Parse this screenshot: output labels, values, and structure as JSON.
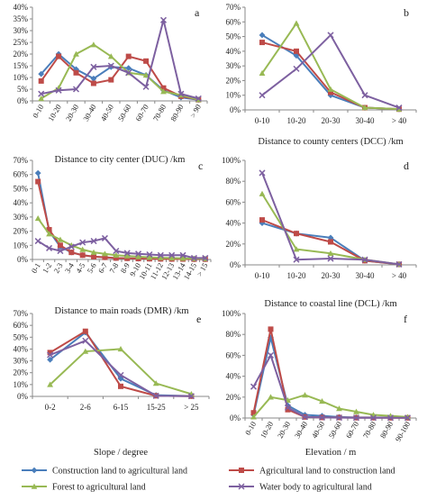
{
  "colors": {
    "construction_to_agri": "#4a7ebb",
    "agri_to_construction": "#be4b48",
    "forest_to_agri": "#98b954",
    "water_to_agri": "#7d60a0"
  },
  "legend": [
    {
      "key": "construction_to_agri",
      "label": "Construction land to agricultural land",
      "marker": "diamond"
    },
    {
      "key": "agri_to_construction",
      "label": "Agricultural land to construction land",
      "marker": "square"
    },
    {
      "key": "forest_to_agri",
      "label": "Forest to agricultural land",
      "marker": "triangle"
    },
    {
      "key": "water_to_agri",
      "label": "Water body to agricultural land",
      "marker": "x"
    }
  ],
  "chart_data": [
    {
      "type": "line",
      "panel": "a",
      "xlabel": "Distance to city center (DUC) /km",
      "categories": [
        "0-10",
        "10-20",
        "20-30",
        "30-40",
        "40-50",
        "50-60",
        "60-70",
        "70-80",
        "80-90",
        "> 90"
      ],
      "ylim": [
        0,
        40
      ],
      "yticks": [
        "0%",
        "5%",
        "10%",
        "15%",
        "20%",
        "25%",
        "30%",
        "35%",
        "40%"
      ],
      "ytick_values": [
        0,
        5,
        10,
        15,
        20,
        25,
        30,
        35,
        40
      ],
      "series": [
        {
          "key": "construction_to_agri",
          "values": [
            11.5,
            20,
            13.5,
            9.5,
            14.5,
            14,
            11,
            4.5,
            1.5,
            0.5
          ]
        },
        {
          "key": "agri_to_construction",
          "values": [
            8.5,
            19,
            12,
            7.5,
            9,
            19,
            17,
            5.5,
            2,
            0.5
          ]
        },
        {
          "key": "forest_to_agri",
          "values": [
            1,
            5.5,
            20,
            24,
            19,
            12,
            11,
            4,
            2.5,
            0.5
          ]
        },
        {
          "key": "water_to_agri",
          "values": [
            3,
            4.5,
            5,
            14.5,
            15,
            12,
            6,
            34.5,
            3,
            1
          ]
        }
      ]
    },
    {
      "type": "line",
      "panel": "b",
      "xlabel": "Distance to county centers (DCC) /km",
      "categories": [
        "0-10",
        "10-20",
        "20-30",
        "30-40",
        "> 40"
      ],
      "ylim": [
        0,
        70
      ],
      "yticks": [
        "0%",
        "10%",
        "20%",
        "30%",
        "40%",
        "50%",
        "60%",
        "70%"
      ],
      "ytick_values": [
        0,
        10,
        20,
        30,
        40,
        50,
        60,
        70
      ],
      "series": [
        {
          "key": "construction_to_agri",
          "values": [
            51,
            37,
            10,
            1.5,
            0.5
          ]
        },
        {
          "key": "agri_to_construction",
          "values": [
            46,
            40,
            12,
            1.5,
            0.5
          ]
        },
        {
          "key": "forest_to_agri",
          "values": [
            25,
            59,
            14,
            1.5,
            0.5
          ]
        },
        {
          "key": "water_to_agri",
          "values": [
            10,
            28,
            51,
            10,
            1.5
          ]
        }
      ]
    },
    {
      "type": "line",
      "panel": "c",
      "xlabel": "Distance to main roads (DMR) /km",
      "categories": [
        "0-1",
        "1-2",
        "2-3",
        "3-4",
        "4-5",
        "5-6",
        "6-7",
        "7-8",
        "8-9",
        "9-10",
        "10-11",
        "11-12",
        "12-13",
        "13-14",
        "14-15",
        "> 15"
      ],
      "ylim": [
        0,
        70
      ],
      "yticks": [
        "0%",
        "10%",
        "20%",
        "30%",
        "40%",
        "50%",
        "60%",
        "70%"
      ],
      "ytick_values": [
        0,
        10,
        20,
        30,
        40,
        50,
        60,
        70
      ],
      "series": [
        {
          "key": "construction_to_agri",
          "values": [
            61,
            20,
            9,
            5,
            3,
            2,
            1.5,
            1,
            0.8,
            0.6,
            0.5,
            0.4,
            0.3,
            0.3,
            0.2,
            0.2
          ]
        },
        {
          "key": "agri_to_construction",
          "values": [
            55,
            21,
            10,
            5,
            3,
            2,
            1.5,
            1,
            0.8,
            0.6,
            0.5,
            0.4,
            0.3,
            0.3,
            0.2,
            0.2
          ]
        },
        {
          "key": "forest_to_agri",
          "values": [
            29,
            18,
            14,
            10,
            7,
            5,
            4,
            3,
            2.5,
            2,
            1.5,
            1.2,
            1,
            0.8,
            0.6,
            0.5
          ]
        },
        {
          "key": "water_to_agri",
          "values": [
            13,
            8,
            6,
            9,
            12,
            13,
            15,
            6,
            4.5,
            4,
            3.5,
            3,
            3,
            3,
            1,
            1
          ]
        }
      ]
    },
    {
      "type": "line",
      "panel": "d",
      "xlabel": "Distance to coastal line (DCL) /km",
      "categories": [
        "0-10",
        "10-20",
        "20-30",
        "30-40",
        "> 40"
      ],
      "ylim": [
        0,
        100
      ],
      "yticks": [
        "0%",
        "20%",
        "40%",
        "60%",
        "80%",
        "100%"
      ],
      "ytick_values": [
        0,
        20,
        40,
        60,
        80,
        100
      ],
      "series": [
        {
          "key": "construction_to_agri",
          "values": [
            40,
            30,
            26,
            4,
            0.5
          ]
        },
        {
          "key": "agri_to_construction",
          "values": [
            43,
            30,
            22,
            4,
            0.5
          ]
        },
        {
          "key": "forest_to_agri",
          "values": [
            68,
            15,
            11,
            5,
            0.5
          ]
        },
        {
          "key": "water_to_agri",
          "values": [
            88,
            5,
            6,
            5,
            0.5
          ]
        }
      ]
    },
    {
      "type": "line",
      "panel": "e",
      "xlabel": "Slope / degree",
      "categories": [
        "0-2",
        "2-6",
        "6-15",
        "15-25",
        "> 25"
      ],
      "ylim": [
        0,
        70
      ],
      "yticks": [
        "0%",
        "10%",
        "20%",
        "30%",
        "40%",
        "50%",
        "60%",
        "70%"
      ],
      "ytick_values": [
        0,
        10,
        20,
        30,
        40,
        50,
        60,
        70
      ],
      "series": [
        {
          "key": "construction_to_agri",
          "values": [
            31,
            54,
            15,
            1,
            0.3
          ]
        },
        {
          "key": "agri_to_construction",
          "values": [
            37,
            55,
            8.5,
            0.5,
            0.2
          ]
        },
        {
          "key": "forest_to_agri",
          "values": [
            10,
            38,
            40,
            11,
            2
          ]
        },
        {
          "key": "water_to_agri",
          "values": [
            35,
            47,
            18,
            0.5,
            0.2
          ]
        }
      ]
    },
    {
      "type": "line",
      "panel": "f",
      "xlabel": "Elevation / m",
      "categories": [
        "0-10",
        "10-20",
        "20-30",
        "30-40",
        "40-50",
        "50-60",
        "60-70",
        "70-80",
        "80-90",
        "90-100"
      ],
      "ylim": [
        0,
        100
      ],
      "yticks": [
        "0%",
        "20%",
        "40%",
        "60%",
        "80%",
        "100%"
      ],
      "ytick_values": [
        0,
        20,
        40,
        60,
        80,
        100
      ],
      "series": [
        {
          "key": "construction_to_agri",
          "values": [
            3,
            77,
            12,
            3,
            2,
            1,
            0.5,
            0.5,
            0.5,
            0.3
          ]
        },
        {
          "key": "agri_to_construction",
          "values": [
            5,
            85,
            8,
            1,
            0.5,
            0.5,
            0.3,
            0.3,
            0.2,
            0.2
          ]
        },
        {
          "key": "forest_to_agri",
          "values": [
            1,
            20,
            17,
            22,
            16,
            9,
            6,
            3,
            2,
            1
          ]
        },
        {
          "key": "water_to_agri",
          "values": [
            30,
            60,
            10,
            1,
            0.5,
            0.3,
            0.2,
            0.2,
            0.2,
            0.2
          ]
        }
      ]
    }
  ]
}
